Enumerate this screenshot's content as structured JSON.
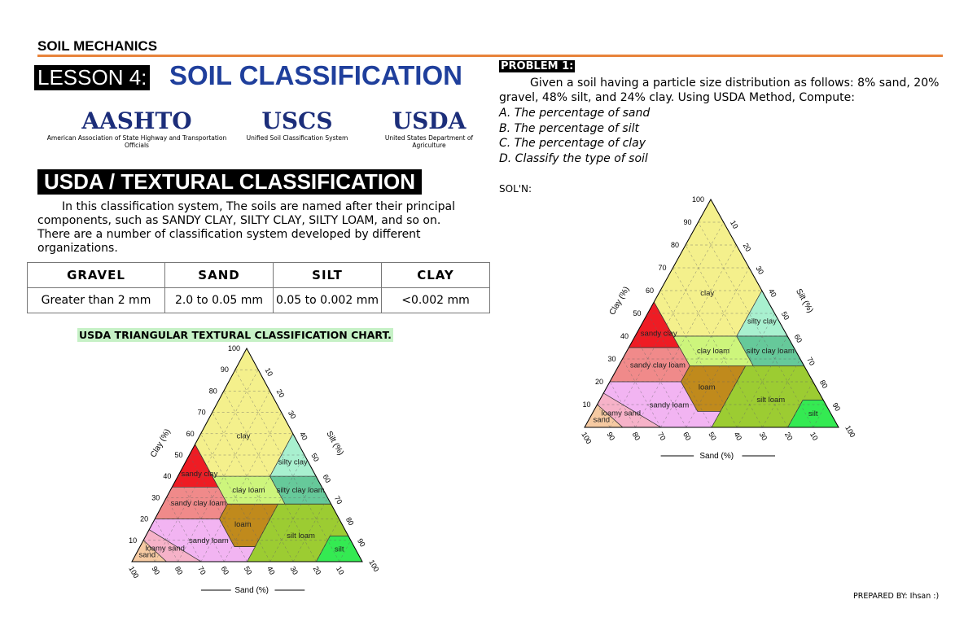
{
  "header": {
    "course": "SOIL MECHANICS",
    "lesson_label": "LESSON 4:",
    "lesson_title": "SOIL CLASSIFICATION"
  },
  "logos": [
    {
      "name": "AASHTO",
      "caption": "American Association of State Highway and Transportation Officials"
    },
    {
      "name": "USCS",
      "caption": "Unified Soil Classification System"
    },
    {
      "name": "USDA",
      "caption": "United States Department of Agriculture"
    }
  ],
  "section": {
    "title": "USDA / TEXTURAL CLASSIFICATION",
    "paragraph": "In this classification system, The soils are named after their principal components, such as SANDY CLAY, SILTY CLAY, SILTY LOAM, and so on. There are a number of classification system developed by different organizations."
  },
  "table": {
    "header": [
      "GRAVEL",
      "SAND",
      "SILT",
      "CLAY"
    ],
    "rows": [
      [
        "Greater than 2 mm",
        "2.0 to 0.05 mm",
        "0.05 to 0.002 mm",
        "<0.002 mm"
      ]
    ]
  },
  "chart_caption": "USDA TRIANGULAR TEXTURAL CLASSIFICATION CHART.",
  "problem": {
    "label": "PROBLEM 1:",
    "statement": "Given a soil having a particle size distribution as follows: 8% sand, 20% gravel, 48% silt, and 24% clay. Using USDA Method, Compute:",
    "items": [
      "A. The percentage of sand",
      "B. The percentage of silt",
      "C. The percentage of clay",
      "D. Classify the type of soil"
    ]
  },
  "solution_label": "SOL'N:",
  "prepared_by": "PREPARED BY: Ihsan :)",
  "triangle": {
    "ticks": [
      10,
      20,
      30,
      40,
      50,
      60,
      70,
      80,
      90,
      100
    ],
    "axis_titles": {
      "clay": "Clay (%)",
      "silt": "Silt (%)",
      "sand": "Sand (%)"
    },
    "regions": [
      {
        "name": "clay",
        "color": "#f4f08c"
      },
      {
        "name": "silty clay",
        "color": "#a8f0cf"
      },
      {
        "name": "sandy clay",
        "color": "#ee1c24"
      },
      {
        "name": "clay loam",
        "color": "#cdf57c"
      },
      {
        "name": "silty clay loam",
        "color": "#66c99a"
      },
      {
        "name": "sandy clay loam",
        "color": "#f08a8a"
      },
      {
        "name": "loam",
        "color": "#c08a1c"
      },
      {
        "name": "silt loam",
        "color": "#9ccc32"
      },
      {
        "name": "silt",
        "color": "#34ea52"
      },
      {
        "name": "sandy loam",
        "color": "#f2b4f2"
      },
      {
        "name": "loamy sand",
        "color": "#f6b2c8"
      },
      {
        "name": "sand",
        "color": "#f6caa2"
      }
    ]
  }
}
